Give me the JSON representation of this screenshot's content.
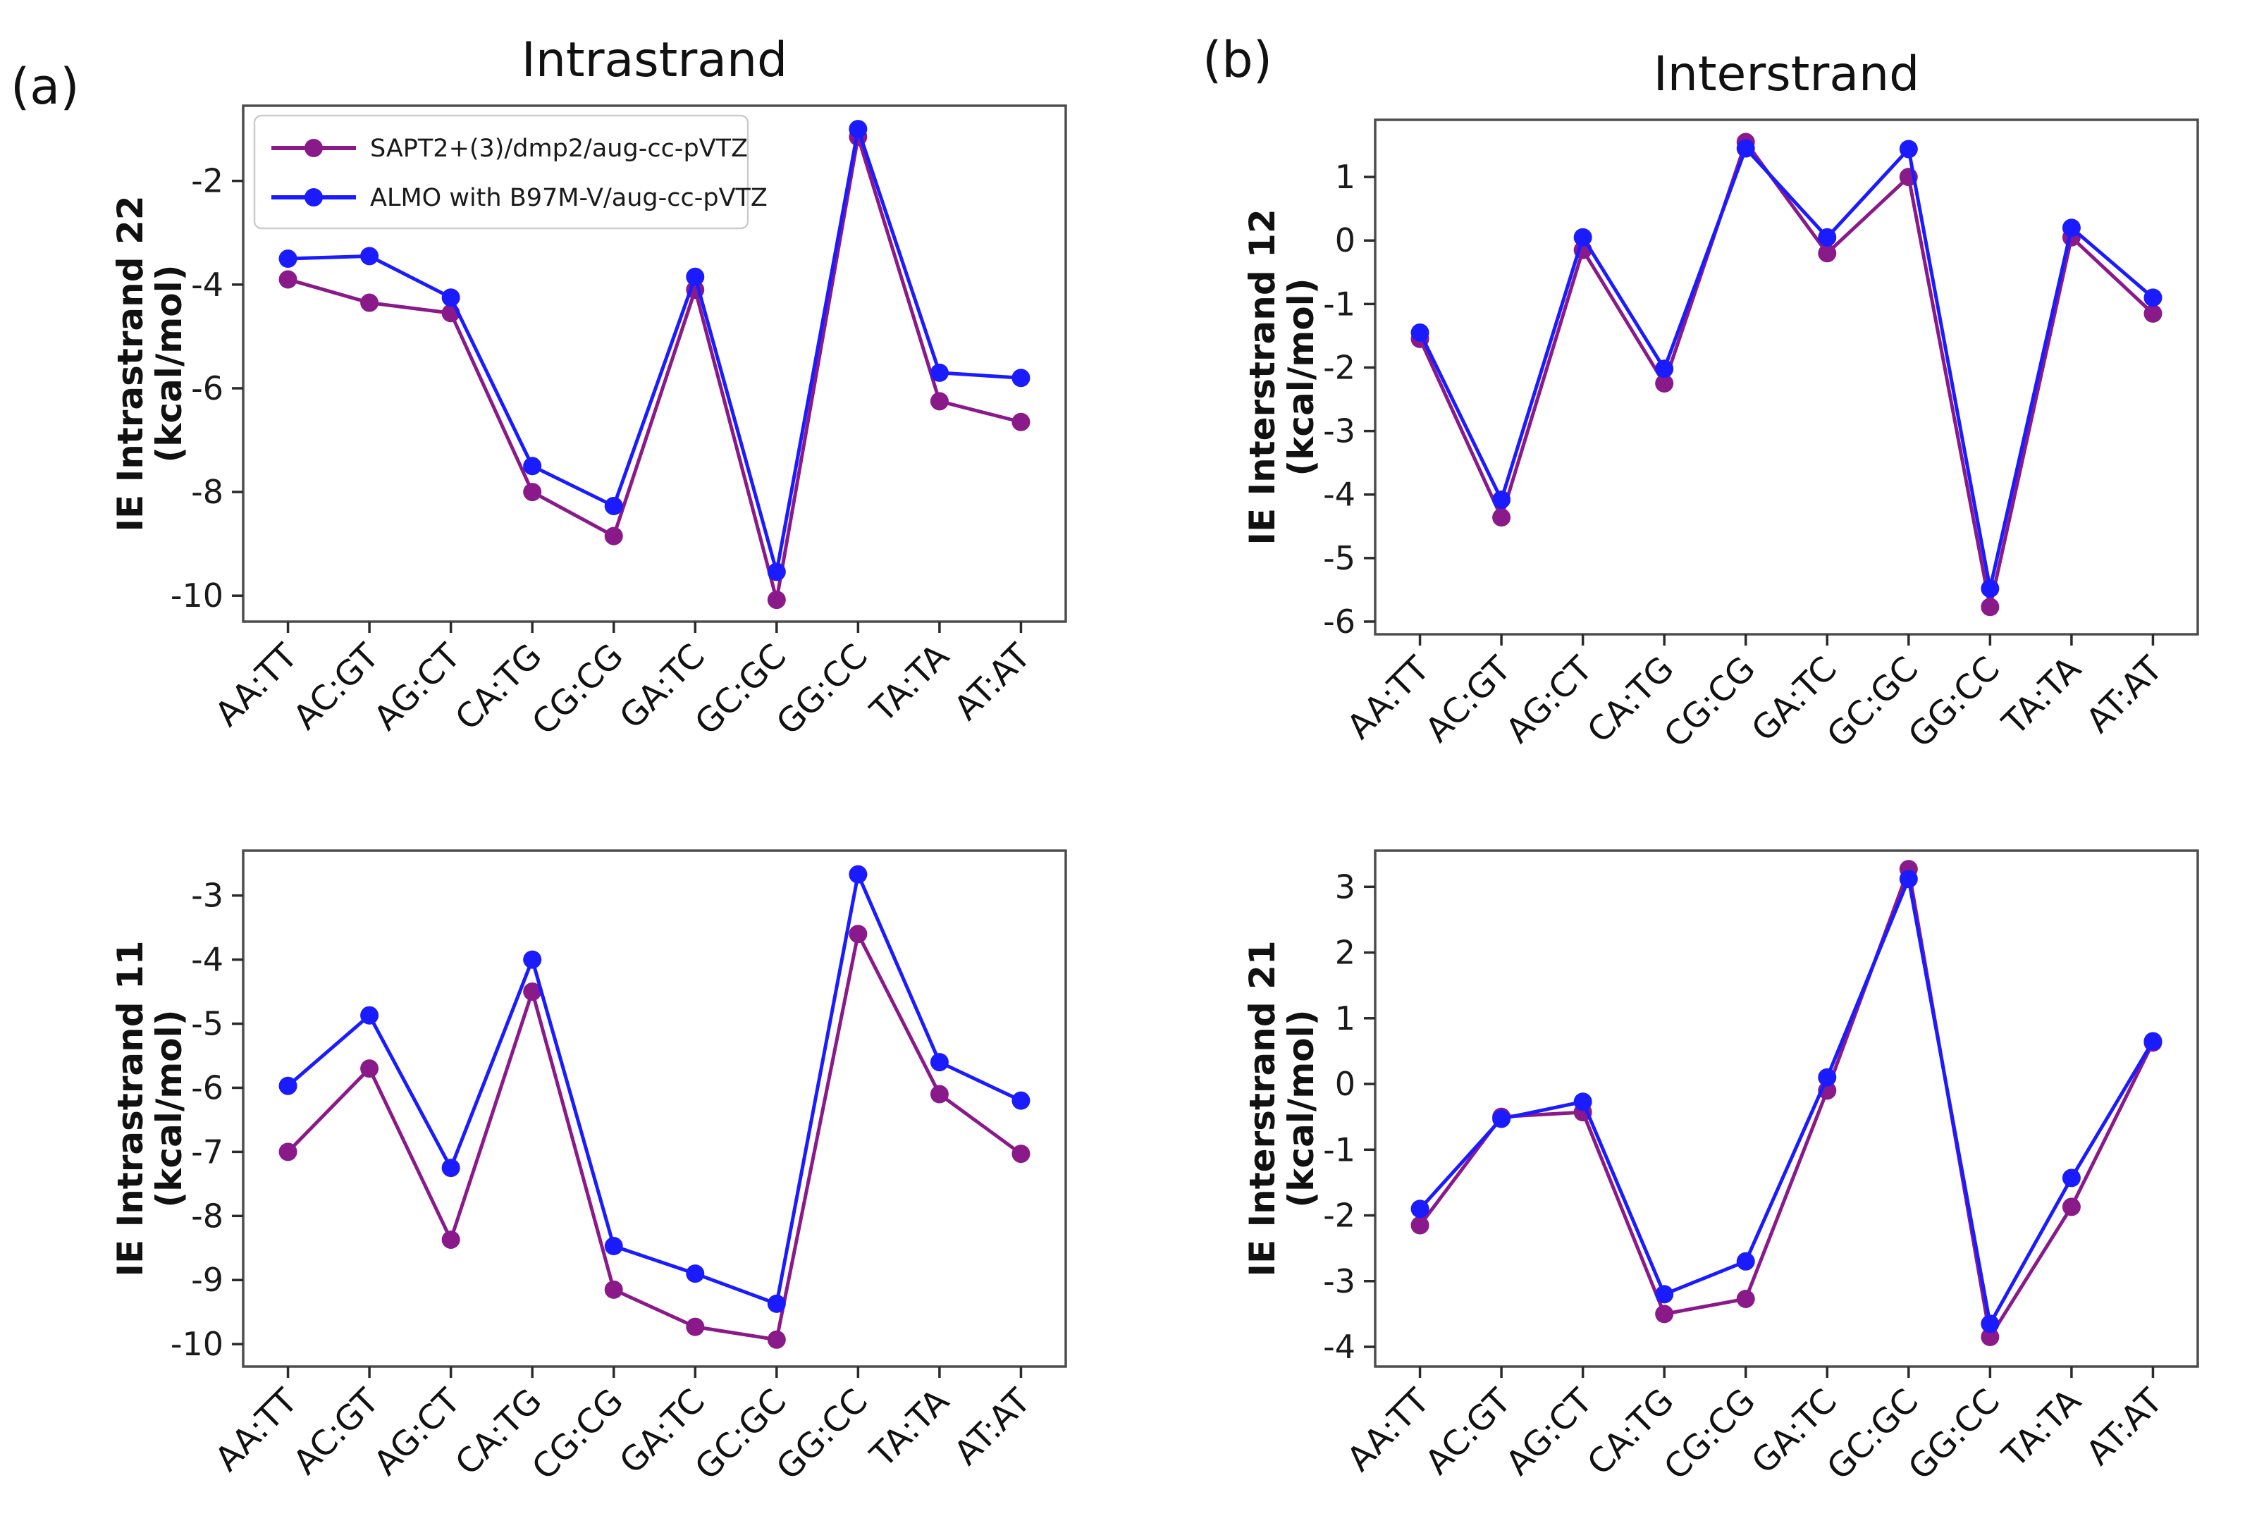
{
  "panels": {
    "a": {
      "label": "(a)"
    },
    "b": {
      "label": "(b)"
    }
  },
  "colors": {
    "sapt_purple": "#8a1a8a",
    "almo_blue": "#1b1bff",
    "axis": "#4d4d4d",
    "legend_border": "#cccccc"
  },
  "chart_data": [
    {
      "type": "line",
      "title": "Intrastrand",
      "ylabel": "IE Intrastrand 22 (kcal/mol)",
      "categories": [
        "AA:TT",
        "AC:GT",
        "AG:CT",
        "CA:TG",
        "CG:CG",
        "GA:TC",
        "GC:GC",
        "GG:CC",
        "TA:TA",
        "AT:AT"
      ],
      "yticks": [
        -2,
        -4,
        -6,
        -8,
        -10
      ],
      "ylim": [
        -10.5,
        -0.55
      ],
      "grid": false,
      "legend_position": "upper left",
      "series": [
        {
          "name": "SAPT2+(3)/dmp2/aug-cc-pVTZ",
          "color": "#8a1a8a",
          "values": [
            -3.9,
            -4.35,
            -4.55,
            -8.0,
            -8.85,
            -4.1,
            -10.08,
            -1.15,
            -6.25,
            -6.65
          ]
        },
        {
          "name": "ALMO with B97M-V/aug-cc-pVTZ",
          "color": "#1b1bff",
          "values": [
            -3.5,
            -3.45,
            -4.25,
            -7.5,
            -8.27,
            -3.85,
            -9.54,
            -1.0,
            -5.7,
            -5.8
          ]
        }
      ]
    },
    {
      "type": "line",
      "title": "",
      "ylabel": "IE Intrastrand 11 (kcal/mol)",
      "categories": [
        "AA:TT",
        "AC:GT",
        "AG:CT",
        "CA:TG",
        "CG:CG",
        "GA:TC",
        "GC:GC",
        "GG:CC",
        "TA:TA",
        "AT:AT"
      ],
      "yticks": [
        -3,
        -4,
        -5,
        -6,
        -7,
        -8,
        -9,
        -10
      ],
      "ylim": [
        -10.35,
        -2.3
      ],
      "grid": false,
      "series": [
        {
          "name": "SAPT2+(3)/dmp2/aug-cc-pVTZ",
          "color": "#8a1a8a",
          "values": [
            -7.0,
            -5.7,
            -8.37,
            -4.5,
            -9.15,
            -9.73,
            -9.93,
            -3.6,
            -6.1,
            -7.03
          ]
        },
        {
          "name": "ALMO with B97M-V/aug-cc-pVTZ",
          "color": "#1b1bff",
          "values": [
            -5.97,
            -4.87,
            -7.25,
            -4.0,
            -8.47,
            -8.9,
            -9.37,
            -2.67,
            -5.6,
            -6.2
          ]
        }
      ]
    },
    {
      "type": "line",
      "title": "Interstrand",
      "ylabel": "IE Interstrand 12 (kcal/mol)",
      "categories": [
        "AA:TT",
        "AC:GT",
        "AG:CT",
        "CA:TG",
        "CG:CG",
        "GA:TC",
        "GC:GC",
        "GG:CC",
        "TA:TA",
        "AT:AT"
      ],
      "yticks": [
        1,
        0,
        -1,
        -2,
        -3,
        -4,
        -5,
        -6
      ],
      "ylim": [
        -6.2,
        1.9
      ],
      "grid": false,
      "series": [
        {
          "name": "SAPT2+(3)/dmp2/aug-cc-pVTZ",
          "color": "#8a1a8a",
          "values": [
            -1.55,
            -4.36,
            -0.15,
            -2.25,
            1.55,
            -0.2,
            1.0,
            -5.77,
            0.05,
            -1.15
          ]
        },
        {
          "name": "ALMO with B97M-V/aug-cc-pVTZ",
          "color": "#1b1bff",
          "values": [
            -1.45,
            -4.08,
            0.05,
            -2.02,
            1.45,
            0.05,
            1.44,
            -5.48,
            0.2,
            -0.9
          ]
        }
      ]
    },
    {
      "type": "line",
      "title": "",
      "ylabel": "IE Interstrand 21 (kcal/mol)",
      "categories": [
        "AA:TT",
        "AC:GT",
        "AG:CT",
        "CA:TG",
        "CG:CG",
        "GA:TC",
        "GC:GC",
        "GG:CC",
        "TA:TA",
        "AT:AT"
      ],
      "yticks": [
        3,
        2,
        1,
        0,
        -1,
        -2,
        -3,
        -4
      ],
      "ylim": [
        -4.3,
        3.55
      ],
      "grid": false,
      "series": [
        {
          "name": "SAPT2+(3)/dmp2/aug-cc-pVTZ",
          "color": "#8a1a8a",
          "values": [
            -2.15,
            -0.5,
            -0.43,
            -3.5,
            -3.27,
            -0.1,
            3.27,
            -3.85,
            -1.87,
            0.63
          ]
        },
        {
          "name": "ALMO with B97M-V/aug-cc-pVTZ",
          "color": "#1b1bff",
          "values": [
            -1.9,
            -0.53,
            -0.27,
            -3.2,
            -2.7,
            0.1,
            3.12,
            -3.65,
            -1.43,
            0.65
          ]
        }
      ]
    }
  ]
}
